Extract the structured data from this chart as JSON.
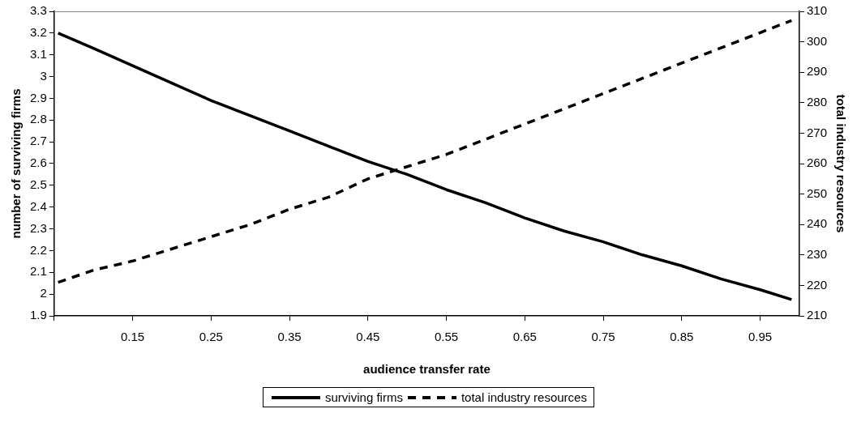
{
  "chart_data": {
    "type": "line",
    "xlabel": "audience transfer rate",
    "ylabel": "number of surviving firms",
    "y2label": "total industry resources",
    "xlim": [
      0.05,
      1.0
    ],
    "xticks": [
      {
        "value": 0.05,
        "label": null
      },
      0.15,
      0.25,
      0.35,
      0.45,
      0.55,
      0.65,
      0.75,
      0.85,
      0.95
    ],
    "ylim": [
      1.9,
      3.3
    ],
    "yticks": [
      1.9,
      2,
      2.1,
      2.2,
      2.3,
      2.4,
      2.5,
      2.6,
      2.7,
      2.8,
      2.9,
      3,
      3.1,
      3.2,
      3.3
    ],
    "y2lim": [
      210,
      310
    ],
    "y2ticks": [
      210,
      220,
      230,
      240,
      250,
      260,
      270,
      280,
      290,
      300,
      310
    ],
    "legend": "bottom",
    "grid": false,
    "marker": "none",
    "series": [
      {
        "name": "surviving firms",
        "color": "#000000",
        "line_style": "solid",
        "x": [
          0.055,
          0.1,
          0.15,
          0.2,
          0.25,
          0.3,
          0.35,
          0.4,
          0.45,
          0.5,
          0.55,
          0.6,
          0.65,
          0.7,
          0.75,
          0.8,
          0.85,
          0.9,
          0.95,
          0.99
        ],
        "values": [
          3.2,
          3.13,
          3.05,
          2.97,
          2.89,
          2.82,
          2.75,
          2.68,
          2.61,
          2.55,
          2.48,
          2.42,
          2.35,
          2.29,
          2.24,
          2.18,
          2.13,
          2.07,
          2.02,
          1.975
        ]
      },
      {
        "name": "total industry resources",
        "color": "#000000",
        "line_style": "dashed",
        "axis": "y2",
        "x": [
          0.055,
          0.1,
          0.15,
          0.2,
          0.25,
          0.3,
          0.35,
          0.4,
          0.45,
          0.5,
          0.55,
          0.6,
          0.65,
          0.7,
          0.75,
          0.8,
          0.85,
          0.9,
          0.95,
          0.99
        ],
        "values": [
          221,
          225,
          228,
          232,
          236,
          240,
          245,
          249,
          255,
          259,
          263,
          268,
          273,
          278,
          283,
          288,
          293,
          298,
          303,
          307
        ]
      }
    ]
  }
}
